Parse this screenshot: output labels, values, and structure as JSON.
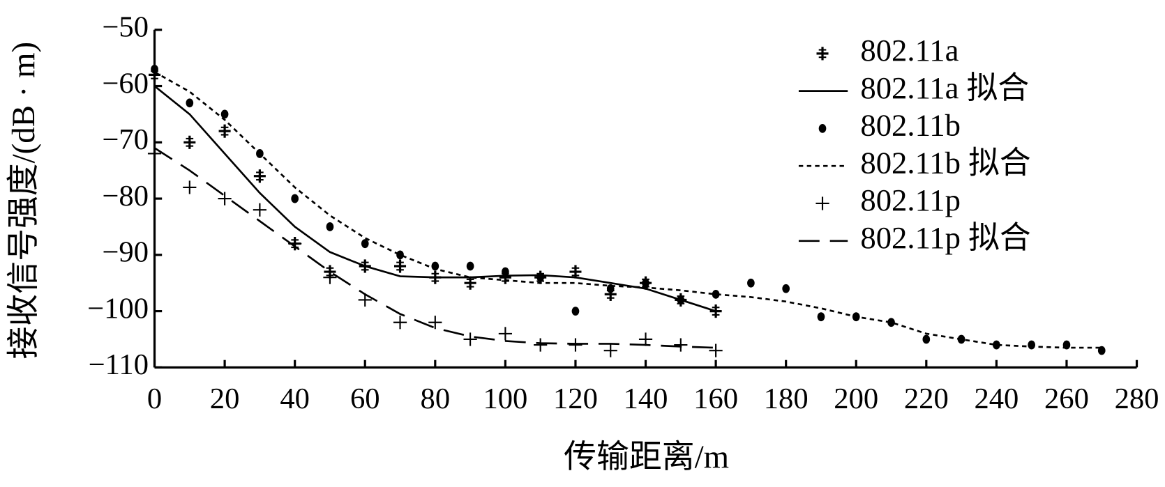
{
  "chart_data": {
    "type": "line",
    "x_label": "传输距离/m",
    "y_label": "接收信号强度/(dB · m)",
    "xlim": [
      0,
      280
    ],
    "xticks": [
      0,
      20,
      40,
      60,
      80,
      100,
      120,
      140,
      160,
      180,
      200,
      220,
      240,
      260,
      280
    ],
    "ylim": [
      -110,
      -50
    ],
    "yticks": [
      {
        "value": -110,
        "label": "−110"
      },
      {
        "value": -100,
        "label": "−100"
      },
      {
        "value": -90,
        "label": "−90"
      },
      {
        "value": -80,
        "label": "−80"
      },
      {
        "value": -70,
        "label": "−70"
      },
      {
        "value": -60,
        "label": "−60"
      },
      {
        "value": -50,
        "label": "−50"
      }
    ],
    "legend": "upper right",
    "series": [
      {
        "name": "802.11a",
        "color": "#000000",
        "marker": "star",
        "x": [
          0,
          10,
          20,
          30,
          40,
          50,
          60,
          70,
          80,
          90,
          100,
          110,
          120,
          130,
          140,
          150,
          160
        ],
        "values": [
          -58,
          -70,
          -68,
          -76,
          -88,
          -93,
          -92,
          -92,
          -94,
          -95,
          -94,
          -94,
          -93,
          -97,
          -95,
          -98,
          -100
        ]
      },
      {
        "name": "802.11a 拟合",
        "color": "#000000",
        "dash": "solid",
        "x": [
          0,
          10,
          20,
          30,
          40,
          50,
          60,
          70,
          80,
          90,
          100,
          110,
          120,
          130,
          140,
          150,
          160
        ],
        "values": [
          -60,
          -65,
          -72,
          -79,
          -85,
          -89.5,
          -92,
          -93.8,
          -94,
          -94,
          -93.7,
          -93.6,
          -94,
          -95,
          -96,
          -98,
          -100
        ]
      },
      {
        "name": "802.11b",
        "color": "#000000",
        "marker": "dot",
        "x": [
          0,
          10,
          20,
          30,
          40,
          50,
          60,
          70,
          80,
          90,
          100,
          110,
          120,
          130,
          140,
          150,
          160,
          170,
          180,
          190,
          200,
          210,
          220,
          230,
          240,
          250,
          260,
          270
        ],
        "values": [
          -57,
          -63,
          -65,
          -72,
          -80,
          -85,
          -88,
          -90,
          -92,
          -92,
          -93,
          -94,
          -100,
          -96,
          -95,
          -98,
          -97,
          -95,
          -96,
          -101,
          -101,
          -102,
          -105,
          -105,
          -106,
          -106,
          -106,
          -107
        ]
      },
      {
        "name": "802.11b 拟合",
        "color": "#000000",
        "dash": "dotted",
        "x": [
          0,
          10,
          20,
          30,
          40,
          50,
          60,
          70,
          80,
          90,
          100,
          110,
          120,
          130,
          140,
          150,
          160,
          170,
          180,
          190,
          200,
          210,
          220,
          230,
          240,
          250,
          260,
          270
        ],
        "values": [
          -57.5,
          -61,
          -66,
          -72,
          -78,
          -83,
          -87,
          -90,
          -92.5,
          -94,
          -94.5,
          -95,
          -95,
          -95.5,
          -95.8,
          -96.3,
          -97,
          -97.5,
          -98.3,
          -99.5,
          -101,
          -102,
          -104,
          -105,
          -106,
          -106.3,
          -106.5,
          -106.5
        ]
      },
      {
        "name": "802.11p",
        "color": "#000000",
        "marker": "plus",
        "x": [
          0,
          10,
          20,
          30,
          40,
          50,
          60,
          70,
          80,
          90,
          100,
          110,
          120,
          130,
          140,
          150,
          160
        ],
        "values": [
          -72,
          -78,
          -80,
          -82,
          -88,
          -94,
          -98,
          -102,
          -102,
          -105,
          -104,
          -106,
          -106,
          -107,
          -105,
          -106,
          -107
        ]
      },
      {
        "name": "802.11p 拟合",
        "color": "#000000",
        "dash": "dashed",
        "x": [
          0,
          10,
          20,
          30,
          40,
          50,
          60,
          70,
          80,
          90,
          100,
          110,
          120,
          130,
          140,
          150,
          160
        ],
        "values": [
          -71,
          -75,
          -79.5,
          -84,
          -88.5,
          -93,
          -97,
          -100.5,
          -103,
          -104.5,
          -105.3,
          -105.7,
          -105.8,
          -105.8,
          -106,
          -106.3,
          -106.5
        ]
      }
    ]
  }
}
